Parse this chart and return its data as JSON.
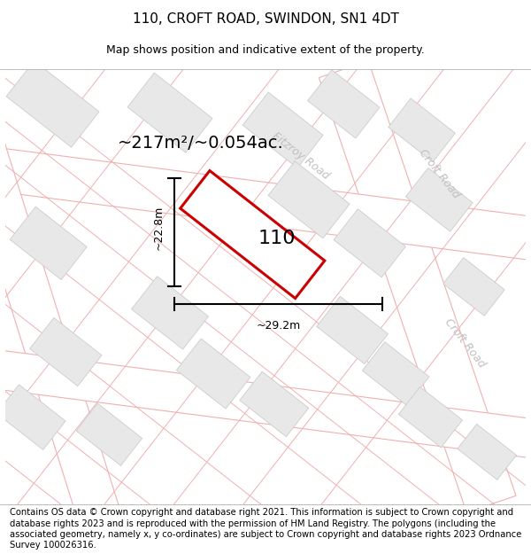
{
  "title_line1": "110, CROFT ROAD, SWINDON, SN1 4DT",
  "title_line2": "Map shows position and indicative extent of the property.",
  "area_label": "~217m²/~0.054ac.",
  "width_label": "~29.2m",
  "height_label": "~22.8m",
  "number_label": "110",
  "road_label_fitzroy": "Fitzroy Road",
  "road_label_croft_top": "Croft Road",
  "road_label_croft_bot": "Croft Road",
  "footer_text": "Contains OS data © Crown copyright and database right 2021. This information is subject to Crown copyright and database rights 2023 and is reproduced with the permission of HM Land Registry. The polygons (including the associated geometry, namely x, y co-ordinates) are subject to Crown copyright and database rights 2023 Ordnance Survey 100026316.",
  "bg_color": "#ffffff",
  "map_bg_color": "#ffffff",
  "building_fill": "#e8e8e8",
  "building_edge": "#cccccc",
  "road_fill": "#ffffff",
  "road_edge": "#f0b0b0",
  "plot_edge": "#cc0000",
  "plot_fill": "#ffffff",
  "road_label_color": "#c0c0c0",
  "title_fontsize": 11,
  "subtitle_fontsize": 9,
  "footer_fontsize": 7.2,
  "area_fontsize": 14,
  "number_fontsize": 16,
  "dim_fontsize": 9,
  "road_label_fontsize": 9
}
